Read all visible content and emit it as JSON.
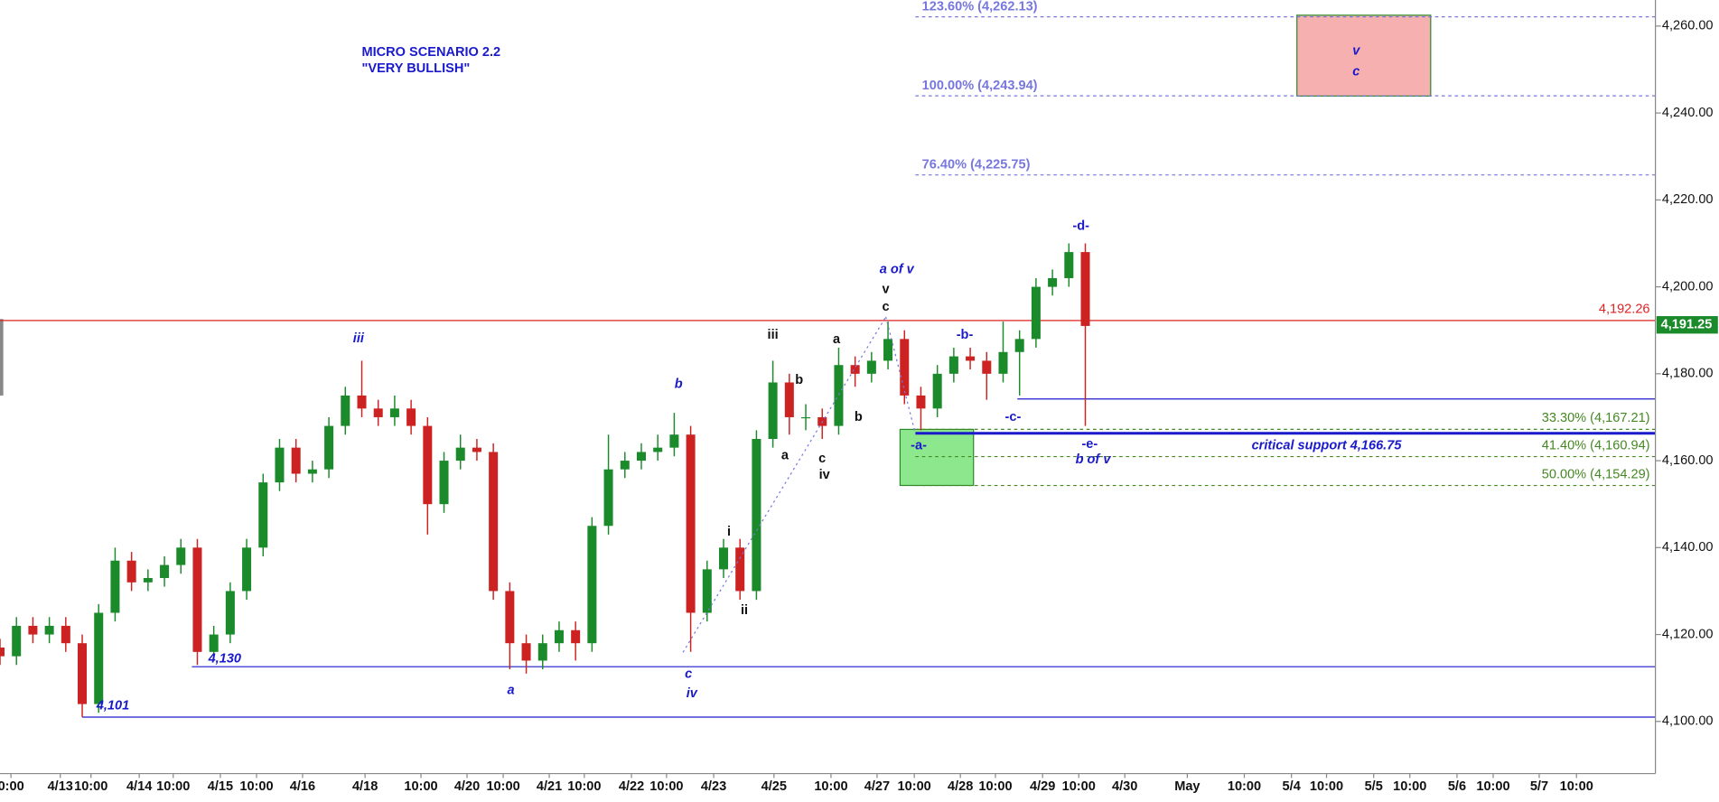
{
  "chart_data": {
    "type": "candlestick",
    "x": [
      0,
      3,
      6,
      9,
      12,
      15,
      18,
      21,
      24,
      27,
      30,
      33,
      36,
      39,
      42,
      45,
      48,
      51,
      54,
      57,
      60,
      63,
      66,
      69,
      72,
      75,
      78,
      81,
      84,
      87,
      90,
      93,
      96,
      99,
      102,
      105,
      108,
      111,
      114,
      117,
      120,
      123,
      126,
      129,
      132,
      135,
      138,
      141,
      144,
      147,
      150,
      153,
      156,
      159,
      162,
      165,
      168,
      171,
      174,
      177,
      180,
      183,
      186,
      189,
      192,
      195,
      198
    ],
    "open": [
      4117,
      4115,
      4122,
      4120,
      4122,
      4118,
      4104,
      4125,
      4137,
      4132,
      4133,
      4136,
      4140,
      4116,
      4120,
      4130,
      4140,
      4155,
      4163,
      4157,
      4158,
      4168,
      4175,
      4172,
      4170,
      4172,
      4168,
      4150,
      4160,
      4163,
      4162,
      4130,
      4118,
      4114,
      4118,
      4121,
      4118,
      4145,
      4158,
      4160,
      4162,
      4163,
      4166,
      4125,
      4135,
      4140,
      4130,
      4165,
      4178,
      4170,
      4170,
      4168,
      4182,
      4180,
      4183,
      4188,
      4175,
      4172,
      4180,
      4184,
      4183,
      4180,
      4185,
      4188,
      4200,
      4202,
      4208
    ],
    "high": [
      4119,
      4124,
      4124,
      4124,
      4124,
      4120,
      4127,
      4140,
      4139,
      4135,
      4138,
      4142,
      4142,
      4122,
      4132,
      4142,
      4157,
      4165,
      4165,
      4160,
      4170,
      4177,
      4183,
      4174,
      4175,
      4174,
      4170,
      4162,
      4166,
      4165,
      4164,
      4132,
      4120,
      4120,
      4123,
      4123,
      4147,
      4166,
      4162,
      4164,
      4166,
      4171,
      4168,
      4137,
      4142,
      4142,
      4167,
      4183,
      4180,
      4173,
      4172,
      4186,
      4184,
      4185,
      4192,
      4190,
      4177,
      4182,
      4186,
      4186,
      4185,
      4192,
      4190,
      4202,
      4204,
      4210,
      4210
    ],
    "low": [
      4113,
      4113,
      4118,
      4118,
      4116,
      4101,
      4102,
      4123,
      4130,
      4130,
      4131,
      4134,
      4113,
      4114,
      4118,
      4128,
      4138,
      4153,
      4155,
      4155,
      4156,
      4166,
      4170,
      4168,
      4168,
      4166,
      4143,
      4148,
      4158,
      4160,
      4128,
      4112,
      4111,
      4112,
      4116,
      4114,
      4116,
      4143,
      4156,
      4158,
      4160,
      4161,
      4116,
      4123,
      4133,
      4128,
      4128,
      4163,
      4166,
      4167,
      4165,
      4166,
      4177,
      4178,
      4181,
      4173,
      4167,
      4170,
      4178,
      4181,
      4174,
      4178,
      4175,
      4186,
      4198,
      4200,
      4168
    ],
    "close": [
      4115,
      4122,
      4120,
      4122,
      4118,
      4104,
      4125,
      4137,
      4132,
      4133,
      4136,
      4140,
      4116,
      4120,
      4130,
      4140,
      4155,
      4163,
      4157,
      4158,
      4168,
      4175,
      4172,
      4170,
      4172,
      4168,
      4150,
      4160,
      4163,
      4162,
      4130,
      4118,
      4114,
      4118,
      4121,
      4118,
      4145,
      4158,
      4160,
      4162,
      4163,
      4166,
      4125,
      4135,
      4140,
      4130,
      4165,
      4178,
      4170,
      4170,
      4168,
      4182,
      4180,
      4183,
      4188,
      4175,
      4172,
      4180,
      4184,
      4183,
      4180,
      4185,
      4188,
      4200,
      4202,
      4208,
      4191
    ],
    "up_color": "#1a8a2a",
    "down_color": "#cc2222",
    "xlim": [
      0,
      302
    ],
    "ylim": [
      4088,
      4266
    ],
    "xticks": [
      {
        "value": 2,
        "label": "0:00"
      },
      {
        "value": 11,
        "label": "4/13"
      },
      {
        "value": 16.6,
        "label": "10:00"
      },
      {
        "value": 25.4,
        "label": "4/14"
      },
      {
        "value": 31.6,
        "label": "10:00"
      },
      {
        "value": 40.2,
        "label": "4/15"
      },
      {
        "value": 46.8,
        "label": "10:00"
      },
      {
        "value": 55.2,
        "label": "4/16"
      },
      {
        "value": 66.6,
        "label": "4/18"
      },
      {
        "value": 76.8,
        "label": "10:00"
      },
      {
        "value": 85.2,
        "label": "4/20"
      },
      {
        "value": 91.8,
        "label": "10:00"
      },
      {
        "value": 100.2,
        "label": "4/21"
      },
      {
        "value": 106.6,
        "label": "10:00"
      },
      {
        "value": 115.2,
        "label": "4/22"
      },
      {
        "value": 121.6,
        "label": "10:00"
      },
      {
        "value": 130.2,
        "label": "4/23"
      },
      {
        "value": 141.2,
        "label": "4/25"
      },
      {
        "value": 151.6,
        "label": "10:00"
      },
      {
        "value": 160,
        "label": "4/27"
      },
      {
        "value": 166.8,
        "label": "10:00"
      },
      {
        "value": 175.2,
        "label": "4/28"
      },
      {
        "value": 181.6,
        "label": "10:00"
      },
      {
        "value": 190.2,
        "label": "4/29"
      },
      {
        "value": 196.8,
        "label": "10:00"
      },
      {
        "value": 205.2,
        "label": "4/30"
      },
      {
        "value": 216.6,
        "label": "May"
      },
      {
        "value": 227,
        "label": "10:00"
      },
      {
        "value": 235.6,
        "label": "5/4"
      },
      {
        "value": 242,
        "label": "10:00"
      },
      {
        "value": 250.6,
        "label": "5/5"
      },
      {
        "value": 257.2,
        "label": "10:00"
      },
      {
        "value": 265.8,
        "label": "5/6"
      },
      {
        "value": 272.4,
        "label": "10:00"
      },
      {
        "value": 280.8,
        "label": "5/7"
      },
      {
        "value": 287.6,
        "label": "10:00"
      }
    ],
    "yticks": [
      {
        "value": 4100,
        "label": "4,100.00"
      },
      {
        "value": 4120,
        "label": "4,120.00"
      },
      {
        "value": 4140,
        "label": "4,140.00"
      },
      {
        "value": 4160,
        "label": "4,160.00"
      },
      {
        "value": 4180,
        "label": "4,180.00"
      },
      {
        "value": 4200,
        "label": "4,200.00"
      },
      {
        "value": 4220,
        "label": "4,220.00"
      },
      {
        "value": 4240,
        "label": "4,240.00"
      },
      {
        "value": 4260,
        "label": "4,260.00"
      }
    ],
    "lines": [
      {
        "value": 4192.26,
        "label": "4,192.26",
        "x": [
          0,
          302
        ],
        "color": "#dd2222",
        "style": "solid"
      },
      {
        "value": 4262.13,
        "label": "123.60% (4,262.13)",
        "x": [
          167,
          302
        ],
        "color": "#7777dd",
        "style": "dashed"
      },
      {
        "value": 4243.94,
        "label": "100.00% (4,243.94)",
        "x": [
          167,
          302
        ],
        "color": "#7777dd",
        "style": "dashed"
      },
      {
        "value": 4225.75,
        "label": "76.40% (4,225.75)",
        "x": [
          167,
          302
        ],
        "color": "#7777dd",
        "style": "dashed"
      },
      {
        "value": 4167.21,
        "label": "33.30% (4,167.21)",
        "x": [
          167,
          302
        ],
        "color": "#448822",
        "style": "dashed"
      },
      {
        "value": 4160.94,
        "label": "41.40% (4,160.94)",
        "x": [
          167,
          302
        ],
        "color": "#448822",
        "style": "dashed"
      },
      {
        "value": 4154.29,
        "label": "50.00% (4,154.29)",
        "x": [
          167,
          302
        ],
        "color": "#448822",
        "style": "dashed"
      },
      {
        "value": 4101,
        "x": [
          15,
          302
        ],
        "color": "#1a1acc",
        "style": "solid"
      },
      {
        "value": 4112.6,
        "x": [
          35,
          302
        ],
        "color": "#1a1acc",
        "style": "solid"
      },
      {
        "value": 4174.2,
        "x": [
          185.6,
          302
        ],
        "color": "#1a1acc",
        "style": "solid"
      },
      {
        "value": 4166.3,
        "x": [
          167,
          302
        ],
        "color": "#1a1acc",
        "style": "thick"
      }
    ],
    "boxes": [
      {
        "x": [
          236.6,
          261
        ],
        "y": [
          4243.9,
          4262.5
        ],
        "color": "#f7b0b0"
      },
      {
        "x": [
          164.2,
          177.6
        ],
        "y": [
          4154.3,
          4167.2
        ],
        "color": "#8de88d"
      }
    ],
    "last_price": {
      "value": 4191.25,
      "label": "4,191.25",
      "color": "#1a8a2a"
    },
    "annotations": [
      {
        "text": "MICRO SCENARIO 2.2",
        "color": "#1a1acc"
      },
      {
        "text": "\"VERY BULLISH\"",
        "color": "#1a1acc"
      },
      {
        "text": "iii",
        "color": "#1a1acc",
        "style": "italic"
      },
      {
        "text": "b",
        "color": "#1a1acc",
        "style": "italic"
      },
      {
        "text": "a",
        "color": "#1a1acc",
        "style": "italic"
      },
      {
        "text": "c",
        "color": "#1a1acc",
        "style": "italic"
      },
      {
        "text": "iv",
        "color": "#1a1acc",
        "style": "italic"
      },
      {
        "text": "4,130",
        "color": "#1a1acc",
        "style": "italic"
      },
      {
        "text": "4,101",
        "color": "#1a1acc",
        "style": "italic"
      },
      {
        "text": "a of v",
        "color": "#1a1acc",
        "style": "italic"
      },
      {
        "text": "v",
        "color": "#111111"
      },
      {
        "text": "c",
        "color": "#111111"
      },
      {
        "text": "iii",
        "color": "#111111"
      },
      {
        "text": "a",
        "color": "#111111"
      },
      {
        "text": "b",
        "color": "#111111"
      },
      {
        "text": "b",
        "color": "#111111"
      },
      {
        "text": "a",
        "color": "#111111"
      },
      {
        "text": "c",
        "color": "#111111"
      },
      {
        "text": "iv",
        "color": "#111111"
      },
      {
        "text": "i",
        "color": "#111111"
      },
      {
        "text": "ii",
        "color": "#111111"
      },
      {
        "text": "-b-",
        "color": "#1a1acc"
      },
      {
        "text": "-c-",
        "color": "#1a1acc"
      },
      {
        "text": "-d-",
        "color": "#1a1acc"
      },
      {
        "text": "-a-",
        "color": "#1a1acc"
      },
      {
        "text": "-e-",
        "color": "#1a1acc"
      },
      {
        "text": "b of v",
        "color": "#1a1acc",
        "style": "italic"
      },
      {
        "text": "critical support 4,166.75",
        "color": "#1a1acc",
        "style": "italic"
      },
      {
        "text": "v",
        "color": "#1a1acc",
        "style": "italic"
      },
      {
        "text": "c",
        "color": "#1a1acc",
        "style": "italic"
      }
    ]
  }
}
